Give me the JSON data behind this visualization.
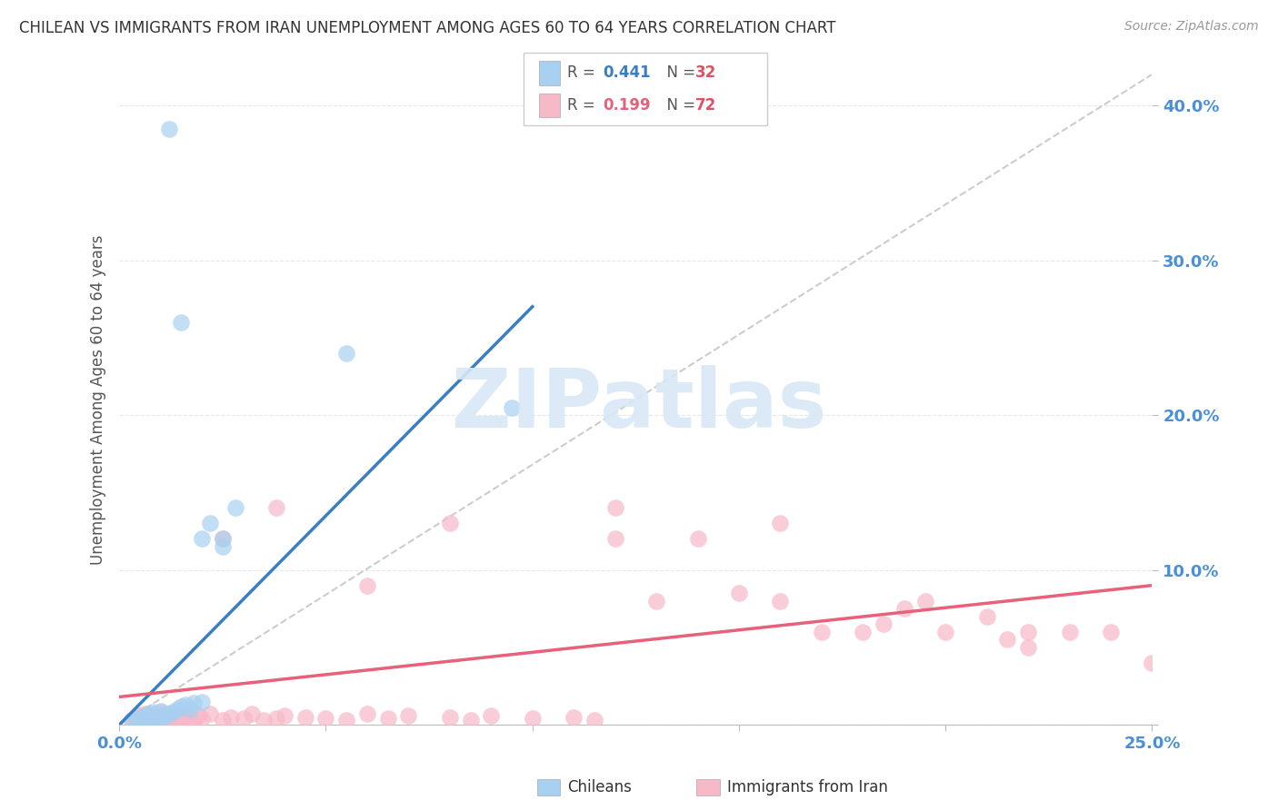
{
  "title": "CHILEAN VS IMMIGRANTS FROM IRAN UNEMPLOYMENT AMONG AGES 60 TO 64 YEARS CORRELATION CHART",
  "source": "Source: ZipAtlas.com",
  "ylabel": "Unemployment Among Ages 60 to 64 years",
  "xlim": [
    0.0,
    0.25
  ],
  "ylim": [
    0.0,
    0.42
  ],
  "xtick_labels": [
    "0.0%",
    "",
    "",
    "",
    "",
    "25.0%"
  ],
  "ytick_labels": [
    "",
    "10.0%",
    "20.0%",
    "30.0%",
    "40.0%"
  ],
  "chileans_R": 0.441,
  "chileans_N": 32,
  "iran_R": 0.199,
  "iran_N": 72,
  "chileans_color": "#A8D0F0",
  "iran_color": "#F7B8C8",
  "chileans_line_color": "#3A7FC1",
  "iran_line_color": "#E8607A",
  "ref_line_color": "#C0C0C0",
  "background_color": "#FFFFFF",
  "grid_color": "#E8E8E8",
  "title_color": "#333333",
  "axis_label_color": "#555555",
  "tick_color": "#4A90D9",
  "legend_R_color_blue": "#3A7FC1",
  "legend_R_color_pink": "#E8607A",
  "legend_N_color": "#E05060",
  "watermark_color": "#D8E8F5",
  "chileans_x": [
    0.003,
    0.004,
    0.005,
    0.006,
    0.006,
    0.007,
    0.007,
    0.008,
    0.008,
    0.009,
    0.01,
    0.01,
    0.011,
    0.012,
    0.013,
    0.014,
    0.015,
    0.016,
    0.017,
    0.018,
    0.02,
    0.022,
    0.025,
    0.028,
    0.012,
    0.015,
    0.02,
    0.025,
    0.055,
    0.095,
    0.005,
    0.008
  ],
  "chileans_y": [
    0.003,
    0.004,
    0.005,
    0.003,
    0.006,
    0.004,
    0.007,
    0.005,
    0.008,
    0.004,
    0.006,
    0.009,
    0.005,
    0.007,
    0.008,
    0.01,
    0.012,
    0.013,
    0.01,
    0.014,
    0.015,
    0.13,
    0.12,
    0.14,
    0.385,
    0.26,
    0.12,
    0.115,
    0.24,
    0.205,
    0.003,
    0.003
  ],
  "iran_x": [
    0.003,
    0.004,
    0.005,
    0.005,
    0.006,
    0.006,
    0.007,
    0.007,
    0.008,
    0.008,
    0.009,
    0.009,
    0.01,
    0.01,
    0.011,
    0.011,
    0.012,
    0.012,
    0.013,
    0.013,
    0.014,
    0.015,
    0.015,
    0.016,
    0.017,
    0.018,
    0.019,
    0.02,
    0.022,
    0.025,
    0.027,
    0.03,
    0.032,
    0.035,
    0.038,
    0.04,
    0.045,
    0.05,
    0.055,
    0.06,
    0.065,
    0.07,
    0.08,
    0.085,
    0.09,
    0.1,
    0.11,
    0.115,
    0.12,
    0.13,
    0.14,
    0.15,
    0.16,
    0.17,
    0.18,
    0.19,
    0.2,
    0.21,
    0.215,
    0.22,
    0.23,
    0.24,
    0.025,
    0.038,
    0.06,
    0.08,
    0.12,
    0.16,
    0.195,
    0.22,
    0.185,
    0.25
  ],
  "iran_y": [
    0.003,
    0.004,
    0.003,
    0.006,
    0.004,
    0.007,
    0.003,
    0.006,
    0.004,
    0.007,
    0.003,
    0.005,
    0.004,
    0.008,
    0.003,
    0.006,
    0.004,
    0.007,
    0.003,
    0.005,
    0.004,
    0.003,
    0.006,
    0.004,
    0.005,
    0.003,
    0.006,
    0.004,
    0.007,
    0.003,
    0.005,
    0.004,
    0.007,
    0.003,
    0.004,
    0.006,
    0.005,
    0.004,
    0.003,
    0.007,
    0.004,
    0.006,
    0.005,
    0.003,
    0.006,
    0.004,
    0.005,
    0.003,
    0.12,
    0.08,
    0.12,
    0.085,
    0.08,
    0.06,
    0.06,
    0.075,
    0.06,
    0.07,
    0.055,
    0.05,
    0.06,
    0.06,
    0.12,
    0.14,
    0.09,
    0.13,
    0.14,
    0.13,
    0.08,
    0.06,
    0.065,
    0.04
  ],
  "blue_line_x0": 0.0,
  "blue_line_y0": 0.0,
  "blue_line_x1": 0.1,
  "blue_line_y1": 0.27,
  "pink_line_x0": 0.0,
  "pink_line_y0": 0.018,
  "pink_line_x1": 0.25,
  "pink_line_y1": 0.09
}
